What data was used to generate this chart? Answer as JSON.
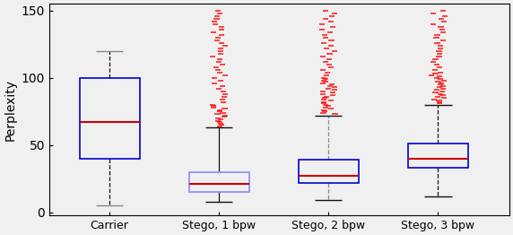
{
  "ylabel": "Perplexity",
  "xlabels": [
    "Carrier",
    "Stego, 1 bpw",
    "Stego, 2 bpw",
    "Stego, 3 bpw"
  ],
  "ylim": [
    -2,
    155
  ],
  "yticks": [
    0,
    50,
    100,
    150
  ],
  "box_stats": [
    {
      "label": "Carrier",
      "q1": 40,
      "median": 67,
      "q3": 100,
      "whislo": 5,
      "whishi": 120,
      "fliers_y": [],
      "whisker_style": "dashed",
      "box_color": "#0000cc",
      "median_color": "#cc0000",
      "whisker_color": "#111111",
      "cap_color": "#888888"
    },
    {
      "label": "Stego, 1 bpw",
      "q1": 15,
      "median": 21,
      "q3": 30,
      "whislo": 8,
      "whishi": 63,
      "fliers_y": [
        64,
        65,
        66,
        67,
        68,
        69,
        70,
        71,
        72,
        73,
        74,
        75,
        76,
        77,
        78,
        79,
        80,
        82,
        84,
        86,
        88,
        90,
        92,
        94,
        96,
        98,
        100,
        102,
        104,
        106,
        108,
        110,
        112,
        114,
        116,
        118,
        120,
        122,
        124,
        126,
        128,
        130,
        132,
        134,
        136,
        138,
        140,
        142,
        144,
        146,
        148,
        150
      ],
      "box_color": "#8888ff",
      "median_color": "#cc0000",
      "whisker_color": "#111111",
      "cap_color": "#111111",
      "whisker_style": "solid"
    },
    {
      "label": "Stego, 2 bpw",
      "q1": 22,
      "median": 27,
      "q3": 39,
      "whislo": 9,
      "whishi": 72,
      "fliers_y": [
        73,
        74,
        75,
        76,
        77,
        78,
        79,
        80,
        81,
        82,
        83,
        84,
        85,
        86,
        87,
        88,
        89,
        90,
        91,
        92,
        93,
        94,
        95,
        96,
        97,
        98,
        99,
        100,
        102,
        104,
        106,
        108,
        110,
        112,
        114,
        116,
        118,
        120,
        122,
        124,
        126,
        128,
        130,
        132,
        134,
        136,
        138,
        140,
        142,
        144,
        146,
        148,
        150
      ],
      "box_color": "#0000cc",
      "median_color": "#cc0000",
      "whisker_color": "#888888",
      "cap_color": "#111111",
      "whisker_style": "dashed"
    },
    {
      "label": "Stego, 3 bpw",
      "q1": 33,
      "median": 40,
      "q3": 51,
      "whislo": 12,
      "whishi": 80,
      "fliers_y": [
        81,
        82,
        83,
        84,
        85,
        86,
        87,
        88,
        89,
        90,
        91,
        92,
        93,
        94,
        95,
        96,
        97,
        98,
        99,
        100,
        101,
        102,
        103,
        104,
        106,
        108,
        110,
        112,
        114,
        116,
        118,
        120,
        122,
        124,
        126,
        128,
        130,
        132,
        134,
        136,
        138,
        140,
        142,
        144,
        146,
        148,
        150
      ],
      "box_color": "#0000cc",
      "median_color": "#cc0000",
      "whisker_color": "#111111",
      "cap_color": "#111111",
      "whisker_style": "dashed"
    }
  ],
  "figsize": [
    5.72,
    2.62
  ],
  "dpi": 100,
  "bg_color": "#f0f0f0"
}
